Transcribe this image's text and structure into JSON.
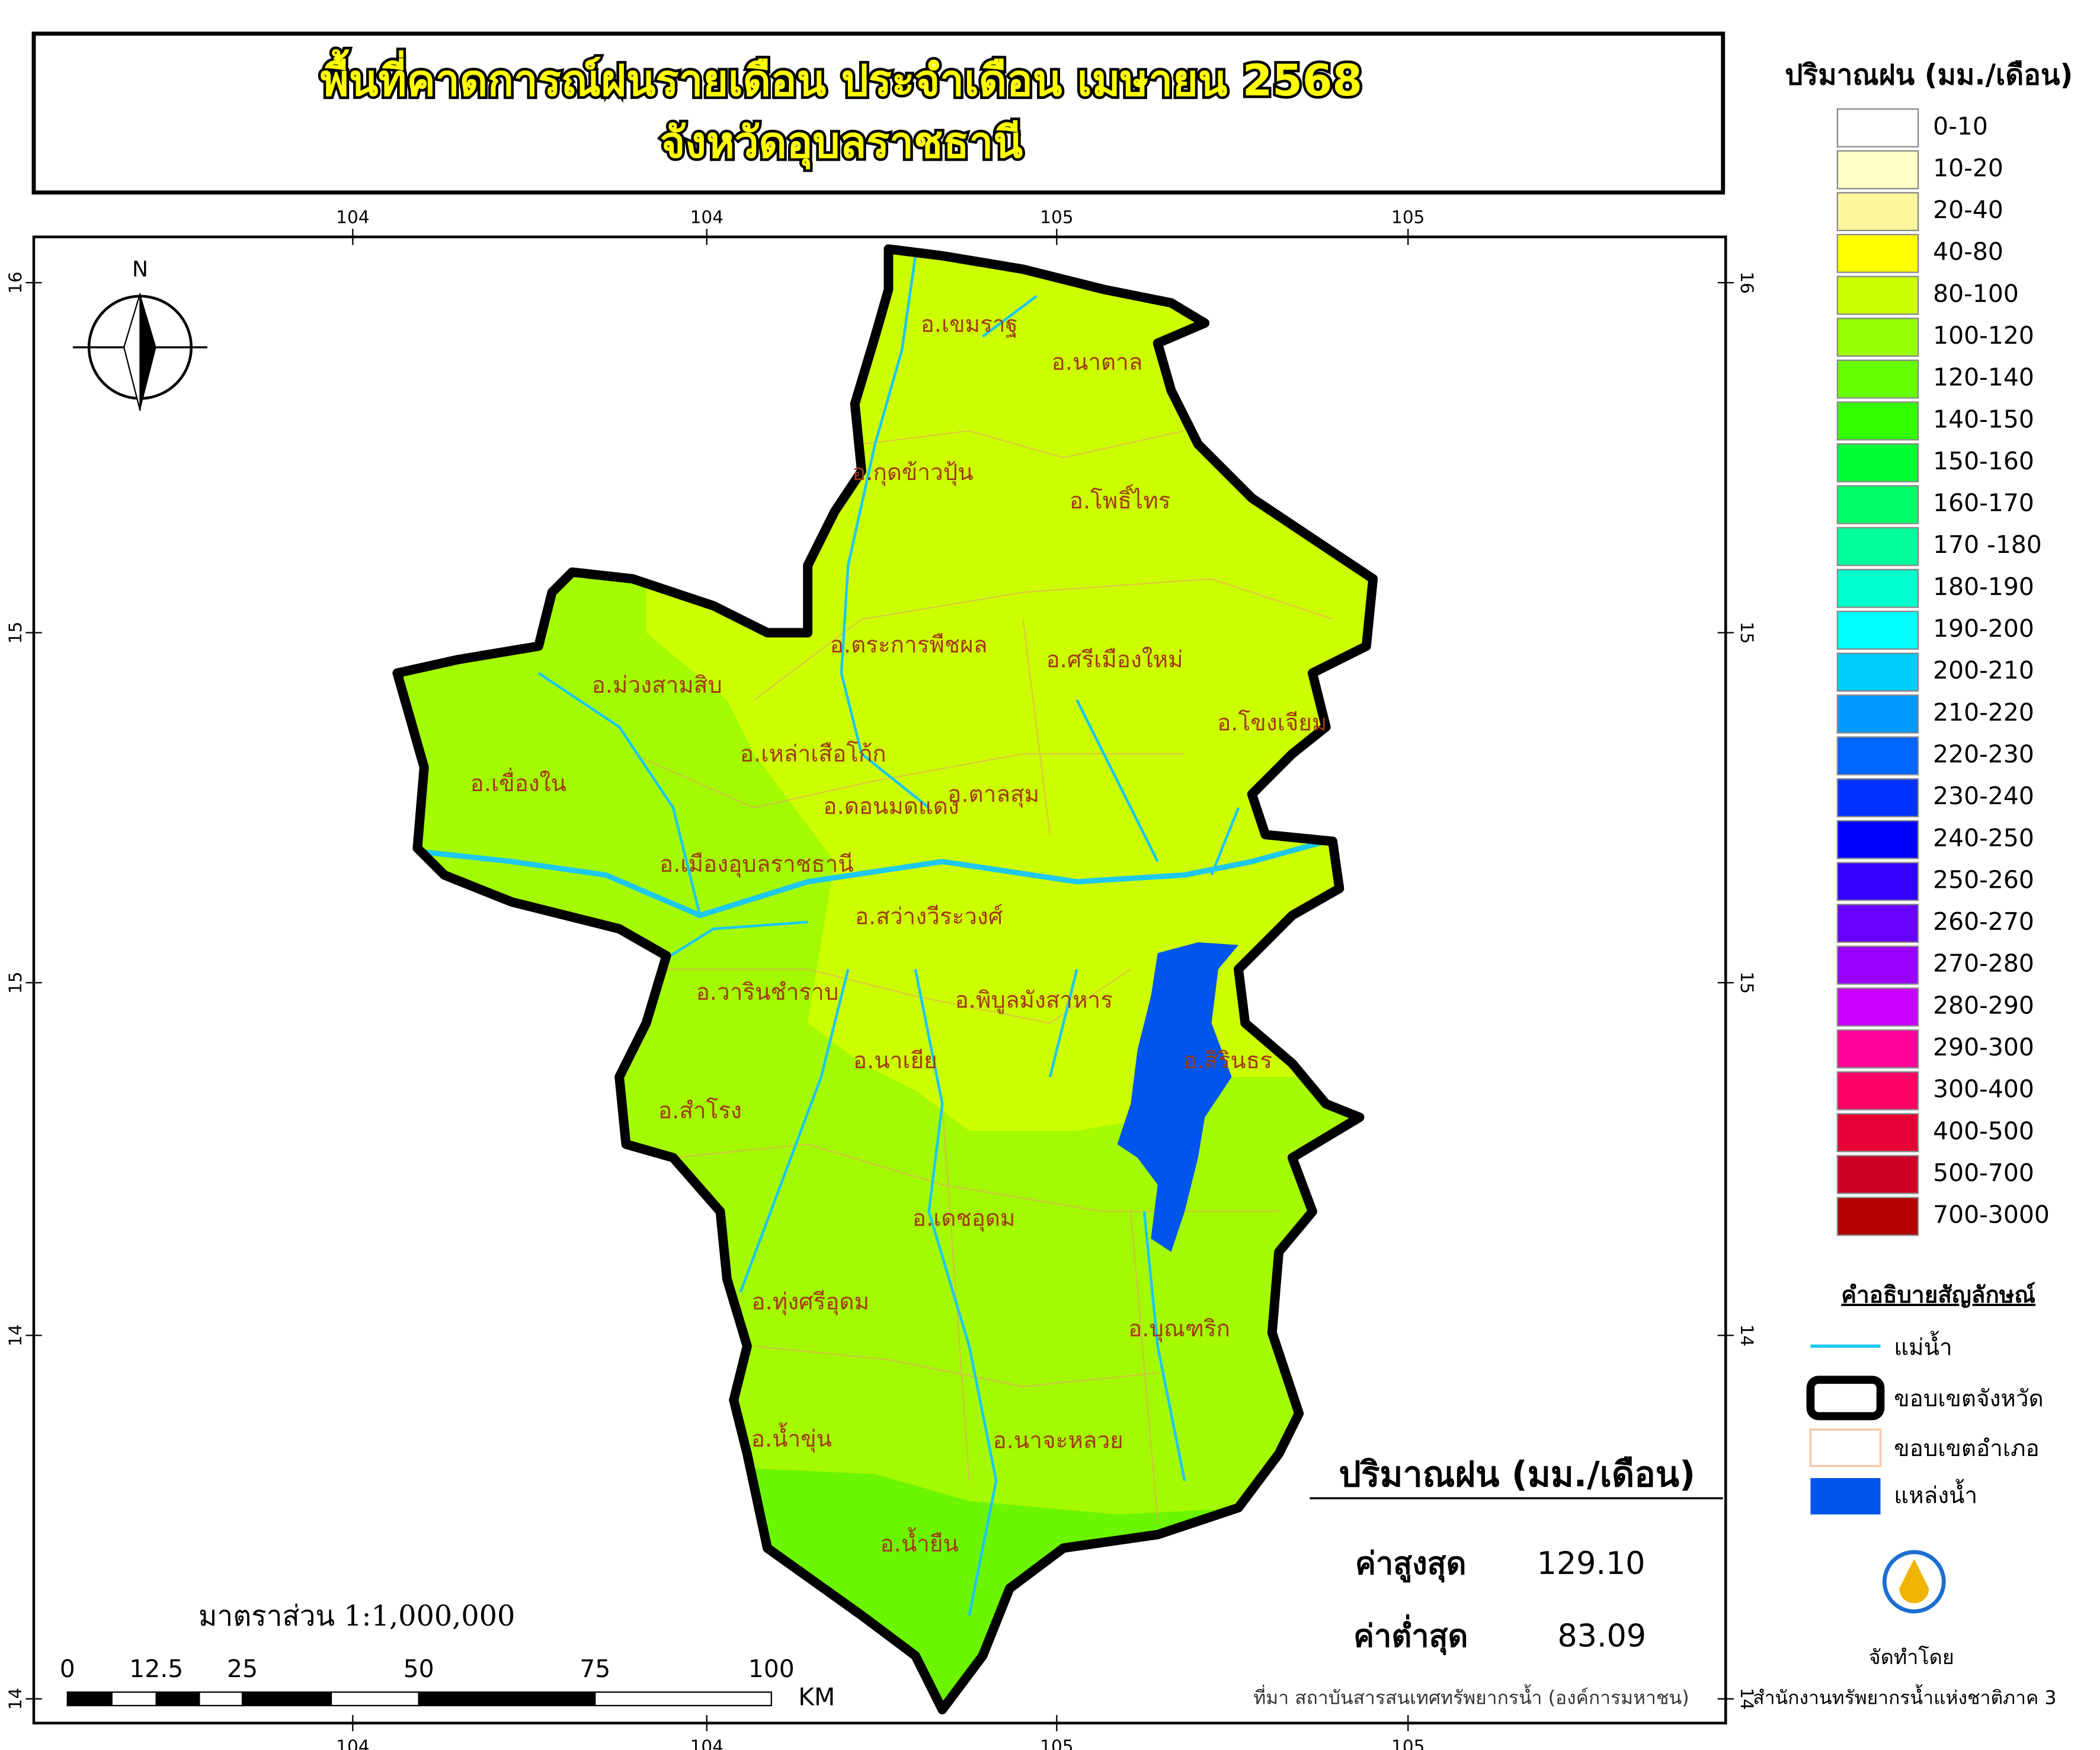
{
  "header": {
    "title_lines": [
      "พื้นที่คาดการณ์ฝนรายเดือน ประจำเดือน เมษายน 2568",
      "จังหวัดอุบลราชธานี"
    ]
  },
  "legend": {
    "title": "ปริมาณฝน (มม./เดือน)",
    "classes": [
      {
        "label": "0-10",
        "color": "#ffffff"
      },
      {
        "label": "10-20",
        "color": "#ffffc8"
      },
      {
        "label": "20-40",
        "color": "#fff59a"
      },
      {
        "label": "40-80",
        "color": "#ffff00"
      },
      {
        "label": "80-100",
        "color": "#ccff00"
      },
      {
        "label": "100-120",
        "color": "#99ff00"
      },
      {
        "label": "120-140",
        "color": "#66ff00"
      },
      {
        "label": "140-150",
        "color": "#33ff00"
      },
      {
        "label": "150-160",
        "color": "#00ff33"
      },
      {
        "label": "160-170",
        "color": "#00ff66"
      },
      {
        "label": "170 -180",
        "color": "#00ff99"
      },
      {
        "label": "180-190",
        "color": "#00ffcc"
      },
      {
        "label": "190-200",
        "color": "#00ffff"
      },
      {
        "label": "200-210",
        "color": "#00ccff"
      },
      {
        "label": "210-220",
        "color": "#0099ff"
      },
      {
        "label": "220-230",
        "color": "#0066ff"
      },
      {
        "label": "230-240",
        "color": "#0033ff"
      },
      {
        "label": "240-250",
        "color": "#0000ff"
      },
      {
        "label": "250-260",
        "color": "#3300ff"
      },
      {
        "label": "260-270",
        "color": "#6600ff"
      },
      {
        "label": "270-280",
        "color": "#9900ff"
      },
      {
        "label": "280-290",
        "color": "#cc00ff"
      },
      {
        "label": "290-300",
        "color": "#ff0099"
      },
      {
        "label": "300-400",
        "color": "#ff0066"
      },
      {
        "label": "400-500",
        "color": "#e60033"
      },
      {
        "label": "500-700",
        "color": "#cc0022"
      },
      {
        "label": "700-3000",
        "color": "#b30000"
      }
    ]
  },
  "symbols": {
    "title": "คำอธิบายสัญลักษณ์",
    "items": [
      "แม่น้ำ",
      "ขอบเขตจังหวัด",
      "ขอบเขตอำเภอ",
      "แหล่งน้ำ"
    ]
  },
  "stats": {
    "title": "ปริมาณฝน (มม./เดือน)",
    "max_label": "ค่าสูงสุด",
    "max_value": "129.10",
    "min_label": "ค่าต่ำสุด",
    "min_value": "83.09"
  },
  "map": {
    "compass": "N",
    "districts": [
      "อ.เขมราฐ",
      "อ.นาตาล",
      "อ.กุดข้าวปุ้น",
      "อ.โพธิ์ไทร",
      "อ.ตระการพืชผล",
      "อ.ศรีเมืองใหม่",
      "อ.ม่วงสามสิบ",
      "อ.โขงเจียม",
      "อ.เหล่าเสือโก้ก",
      "อ.เขื่องใน",
      "อ.ดอนมดแดง",
      "อ.ตาลสุม",
      "อ.เมืองอุบลราชธานี",
      "อ.สว่างวีระวงศ์",
      "อ.วารินชำราบ",
      "อ.พิบูลมังสาหาร",
      "อ.นาเยีย",
      "อ.สิรินธร",
      "อ.สำโรง",
      "อ.เดชอุดม",
      "อ.ทุ่งศรีอุดม",
      "อ.บุณฑริก",
      "อ.น้ำขุ่น",
      "อ.นาจะหลวย",
      "อ.น้ำยืน"
    ],
    "scale_text": "มาตราส่วน  1:1,000,000",
    "scale_labels": [
      "0",
      "12.5",
      "25",
      "50",
      "75",
      "100",
      "KM"
    ]
  },
  "axes": {
    "top": [
      "104",
      "104",
      "105",
      "105"
    ],
    "bottom": [
      "104",
      "104",
      "105",
      "105"
    ],
    "left": [
      "16",
      "15",
      "15",
      "14",
      "14"
    ],
    "right": [
      "16",
      "15",
      "15",
      "14",
      "14"
    ]
  },
  "footer": {
    "source": "ที่มา  สถาบันสารสนเทศทรัพยากรน้ำ (องค์การมหาชน)",
    "credit_label": "จัดทำโดย",
    "credit_org": "สำนักงานทรัพยากรน้ำแห่งชาติภาค 3"
  }
}
